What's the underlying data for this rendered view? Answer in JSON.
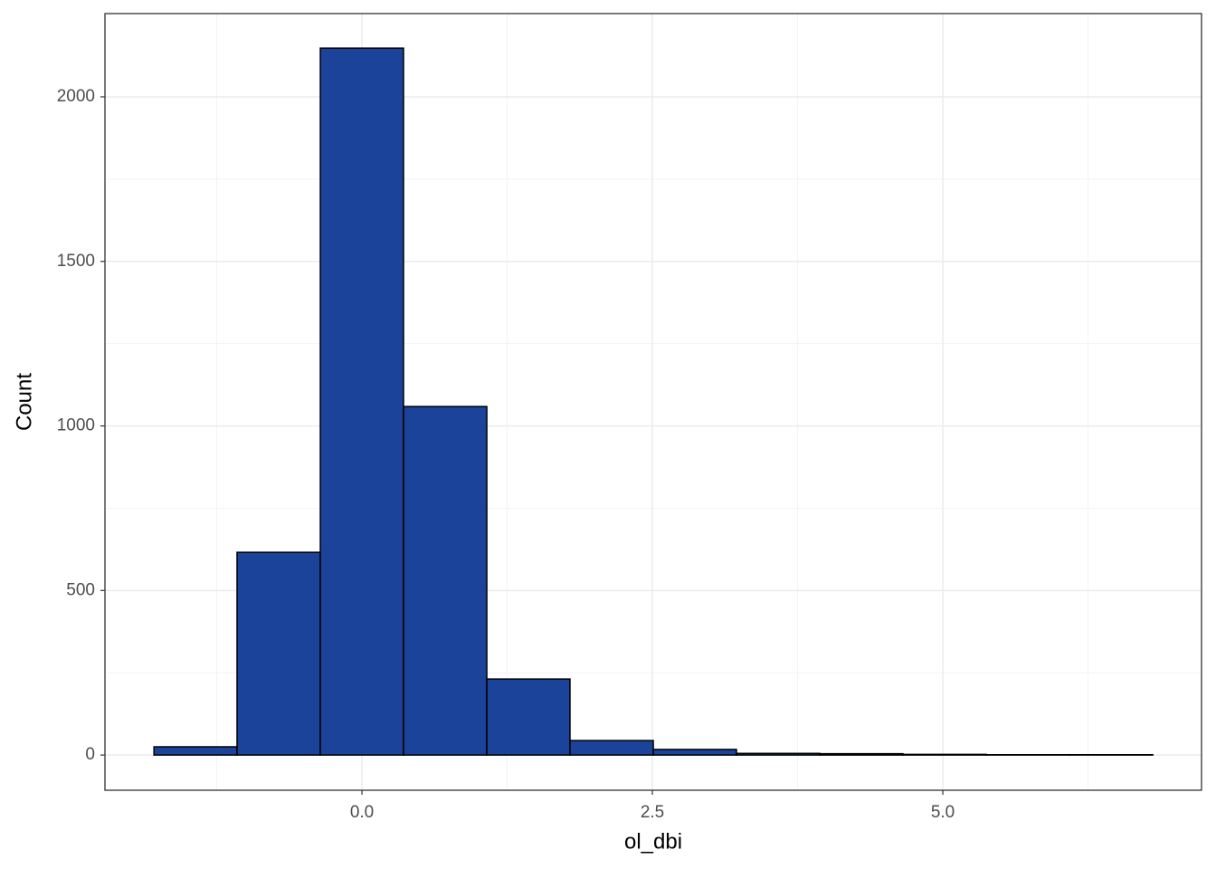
{
  "chart_data": {
    "type": "histogram",
    "x_label": "ol_dbi",
    "y_label": "Count",
    "bins": [
      -1.79,
      -1.075,
      -0.358,
      0.358,
      1.075,
      1.791,
      2.508,
      3.224,
      3.941,
      4.657,
      5.374,
      6.09,
      6.807
    ],
    "values": [
      25,
      616,
      2148,
      1059,
      231,
      44,
      17,
      5,
      4,
      2,
      1,
      1
    ],
    "color": "#1a4399",
    "edgecolor": "#000000",
    "xlim": [
      -2.212,
      7.227
    ],
    "ylim": [
      -107,
      2253
    ],
    "xticks": [
      {
        "value": 0,
        "label": "0.0"
      },
      {
        "value": 2.5,
        "label": "2.5"
      },
      {
        "value": 5,
        "label": "5.0"
      }
    ],
    "yticks": [
      0,
      500,
      1000,
      1500,
      2000
    ],
    "xminor": [
      -1.25,
      1.25,
      3.75,
      6.25
    ],
    "yminor": [
      250,
      750,
      1250,
      1750
    ],
    "grid": true
  }
}
